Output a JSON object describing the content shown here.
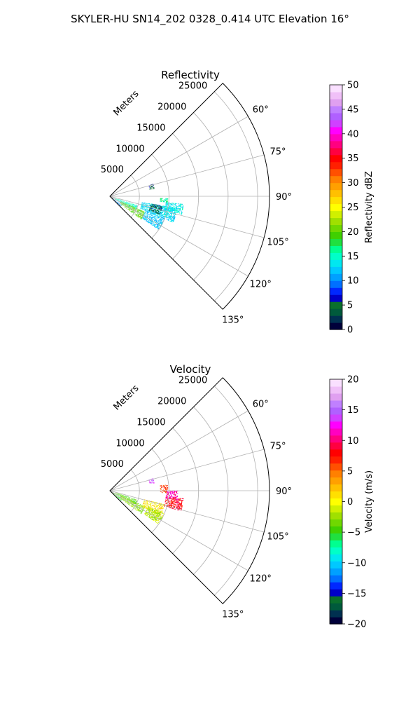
{
  "suptitle": "SKYLER-HU  SN14_202  0328_0.414 UTC Elevation 16°",
  "chart_data": [
    {
      "type": "heatmap",
      "title": "Reflectivity",
      "projection": "polar-sector",
      "theta_range_deg": [
        45,
        135
      ],
      "r_max_m": 27000,
      "r_ticks": [
        5000,
        10000,
        15000,
        20000,
        25000
      ],
      "r_tick_labels": [
        "5000",
        "10000",
        "15000",
        "20000",
        "25000"
      ],
      "r_label": "Meters",
      "theta_ticks": [
        60,
        75,
        90,
        105,
        120,
        135
      ],
      "theta_tick_labels": [
        "60°",
        "75°",
        "90°",
        "105°",
        "120°",
        "135°"
      ],
      "grid": true,
      "colorbar": {
        "label": "Reflectivity dBZ",
        "min": 0,
        "max": 50,
        "ticks": [
          0,
          5,
          10,
          15,
          20,
          25,
          30,
          35,
          40,
          45,
          50
        ],
        "tick_labels": [
          "0",
          "5",
          "10",
          "15",
          "20",
          "25",
          "30",
          "35",
          "40",
          "45",
          "50"
        ],
        "colors": [
          "#00003a",
          "#003050",
          "#005a3c",
          "#0a6f2c",
          "#0000c8",
          "#0028ff",
          "#0070ff",
          "#00a0ff",
          "#00c8ff",
          "#00e8f0",
          "#00ffc8",
          "#00ff90",
          "#20e040",
          "#40d000",
          "#70d800",
          "#a0e000",
          "#d0f000",
          "#ffff00",
          "#ffe000",
          "#ffc000",
          "#ffa000",
          "#ff8000",
          "#ff5000",
          "#ff2000",
          "#ff0000",
          "#ff0040",
          "#ff0080",
          "#ff00c0",
          "#ff00ff",
          "#d040ff",
          "#b060ff",
          "#c080ff",
          "#e0a0f0",
          "#f0c0f8",
          "#fae0ff"
        ]
      },
      "data_regions": [
        {
          "theta_deg": [
            126,
            132
          ],
          "r_m": [
            0,
            2500
          ],
          "value": 10
        },
        {
          "theta_deg": [
            108,
            118
          ],
          "r_m": [
            1000,
            4800
          ],
          "value": 15
        },
        {
          "theta_deg": [
            114,
            126
          ],
          "r_m": [
            2000,
            6500
          ],
          "value": 20
        },
        {
          "theta_deg": [
            100,
            112
          ],
          "r_m": [
            5500,
            11500
          ],
          "value": 13
        },
        {
          "theta_deg": [
            112,
            124
          ],
          "r_m": [
            6500,
            10000
          ],
          "value": 12
        },
        {
          "theta_deg": [
            96,
            104
          ],
          "r_m": [
            9500,
            12500
          ],
          "value": 14
        },
        {
          "theta_deg": [
            100,
            110
          ],
          "r_m": [
            7000,
            9000
          ],
          "value": 4
        },
        {
          "theta_deg": [
            74,
            80
          ],
          "r_m": [
            6800,
            7600
          ],
          "value": 5
        },
        {
          "theta_deg": [
            92,
            96
          ],
          "r_m": [
            8500,
            9800
          ],
          "value": 16
        }
      ]
    },
    {
      "type": "heatmap",
      "title": "Velocity",
      "projection": "polar-sector",
      "theta_range_deg": [
        45,
        135
      ],
      "r_max_m": 27000,
      "r_ticks": [
        5000,
        10000,
        15000,
        20000,
        25000
      ],
      "r_tick_labels": [
        "5000",
        "10000",
        "15000",
        "20000",
        "25000"
      ],
      "r_label": "Meters",
      "theta_ticks": [
        60,
        75,
        90,
        105,
        120,
        135
      ],
      "theta_tick_labels": [
        "60°",
        "75°",
        "90°",
        "105°",
        "120°",
        "135°"
      ],
      "grid": true,
      "colorbar": {
        "label": "Velocity (m/s)",
        "min": -20,
        "max": 20,
        "ticks": [
          -20,
          -15,
          -10,
          -5,
          0,
          5,
          10,
          15,
          20
        ],
        "tick_labels": [
          "−20",
          "−15",
          "−10",
          "−5",
          "0",
          "5",
          "10",
          "15",
          "20"
        ],
        "colors": [
          "#00003a",
          "#003050",
          "#005a3c",
          "#0a6f2c",
          "#0000c8",
          "#0028ff",
          "#0070ff",
          "#00a0ff",
          "#00c8ff",
          "#00e8f0",
          "#00ffc8",
          "#00ff90",
          "#20e040",
          "#40d000",
          "#70d800",
          "#a0e000",
          "#d0f000",
          "#ffff00",
          "#ffe000",
          "#ffc000",
          "#ffa000",
          "#ff8000",
          "#ff5000",
          "#ff2000",
          "#ff0000",
          "#ff0040",
          "#ff0080",
          "#ff00c0",
          "#ff00ff",
          "#d040ff",
          "#b060ff",
          "#c080ff",
          "#e0a0f0",
          "#f0c0f8",
          "#fae0ff"
        ]
      },
      "data_regions": [
        {
          "theta_deg": [
            124,
            132
          ],
          "r_m": [
            0,
            2500
          ],
          "value": -5
        },
        {
          "theta_deg": [
            108,
            118
          ],
          "r_m": [
            1000,
            4800
          ],
          "value": -4
        },
        {
          "theta_deg": [
            114,
            126
          ],
          "r_m": [
            2000,
            6500
          ],
          "value": -3
        },
        {
          "theta_deg": [
            104,
            116
          ],
          "r_m": [
            6000,
            9500
          ],
          "value": 1
        },
        {
          "theta_deg": [
            112,
            124
          ],
          "r_m": [
            7000,
            10000
          ],
          "value": -2
        },
        {
          "theta_deg": [
            96,
            106
          ],
          "r_m": [
            9500,
            12500
          ],
          "value": 8
        },
        {
          "theta_deg": [
            90,
            98
          ],
          "r_m": [
            9500,
            11500
          ],
          "value": 11
        },
        {
          "theta_deg": [
            74,
            80
          ],
          "r_m": [
            6800,
            7600
          ],
          "value": 15
        },
        {
          "theta_deg": [
            84,
            92
          ],
          "r_m": [
            8500,
            9800
          ],
          "value": 6
        }
      ]
    }
  ]
}
